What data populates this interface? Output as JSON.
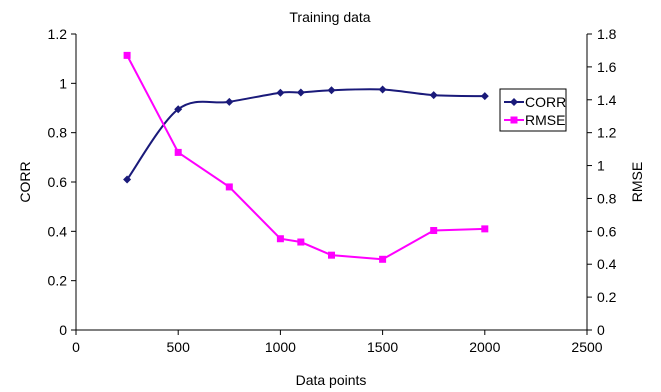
{
  "chart_data": {
    "type": "line",
    "title": "Training data",
    "xlabel": "Data points",
    "ylabel_left": "CORR",
    "ylabel_right": "RMSE",
    "xlim": [
      0,
      2500
    ],
    "ylim_left": [
      0,
      1.2
    ],
    "ylim_right": [
      0,
      1.8
    ],
    "x_ticks": [
      0,
      500,
      1000,
      1500,
      2000,
      2500
    ],
    "y_left_ticks": [
      0,
      0.2,
      0.4,
      0.6,
      0.8,
      1,
      1.2
    ],
    "y_right_ticks": [
      0,
      0.2,
      0.4,
      0.6,
      0.8,
      1,
      1.2,
      1.4,
      1.6,
      1.8
    ],
    "x_tick_labels": [
      "0",
      "500",
      "1000",
      "1500",
      "2000",
      "2500"
    ],
    "y_left_tick_labels": [
      "0",
      "0.2",
      "0.4",
      "0.6",
      "0.8",
      "1",
      "1.2"
    ],
    "y_right_tick_labels": [
      "0",
      "0.2",
      "0.4",
      "0.6",
      "0.8",
      "1",
      "1.2",
      "1.4",
      "1.6",
      "1.8"
    ],
    "grid": false,
    "legend_position": "right",
    "series": [
      {
        "name": "CORR",
        "axis": "left",
        "color": "#1a1a7a",
        "marker": "diamond",
        "smooth": true,
        "x": [
          250,
          500,
          750,
          1000,
          1100,
          1250,
          1500,
          1750,
          2000
        ],
        "y": [
          0.61,
          0.895,
          0.925,
          0.962,
          0.963,
          0.972,
          0.975,
          0.952,
          0.948
        ]
      },
      {
        "name": "RMSE",
        "axis": "right",
        "color": "#ff00ff",
        "marker": "square",
        "smooth": false,
        "x": [
          250,
          500,
          750,
          1000,
          1100,
          1250,
          1500,
          1750,
          2000
        ],
        "y": [
          1.67,
          1.08,
          0.87,
          0.555,
          0.535,
          0.455,
          0.43,
          0.605,
          0.615
        ]
      }
    ]
  }
}
